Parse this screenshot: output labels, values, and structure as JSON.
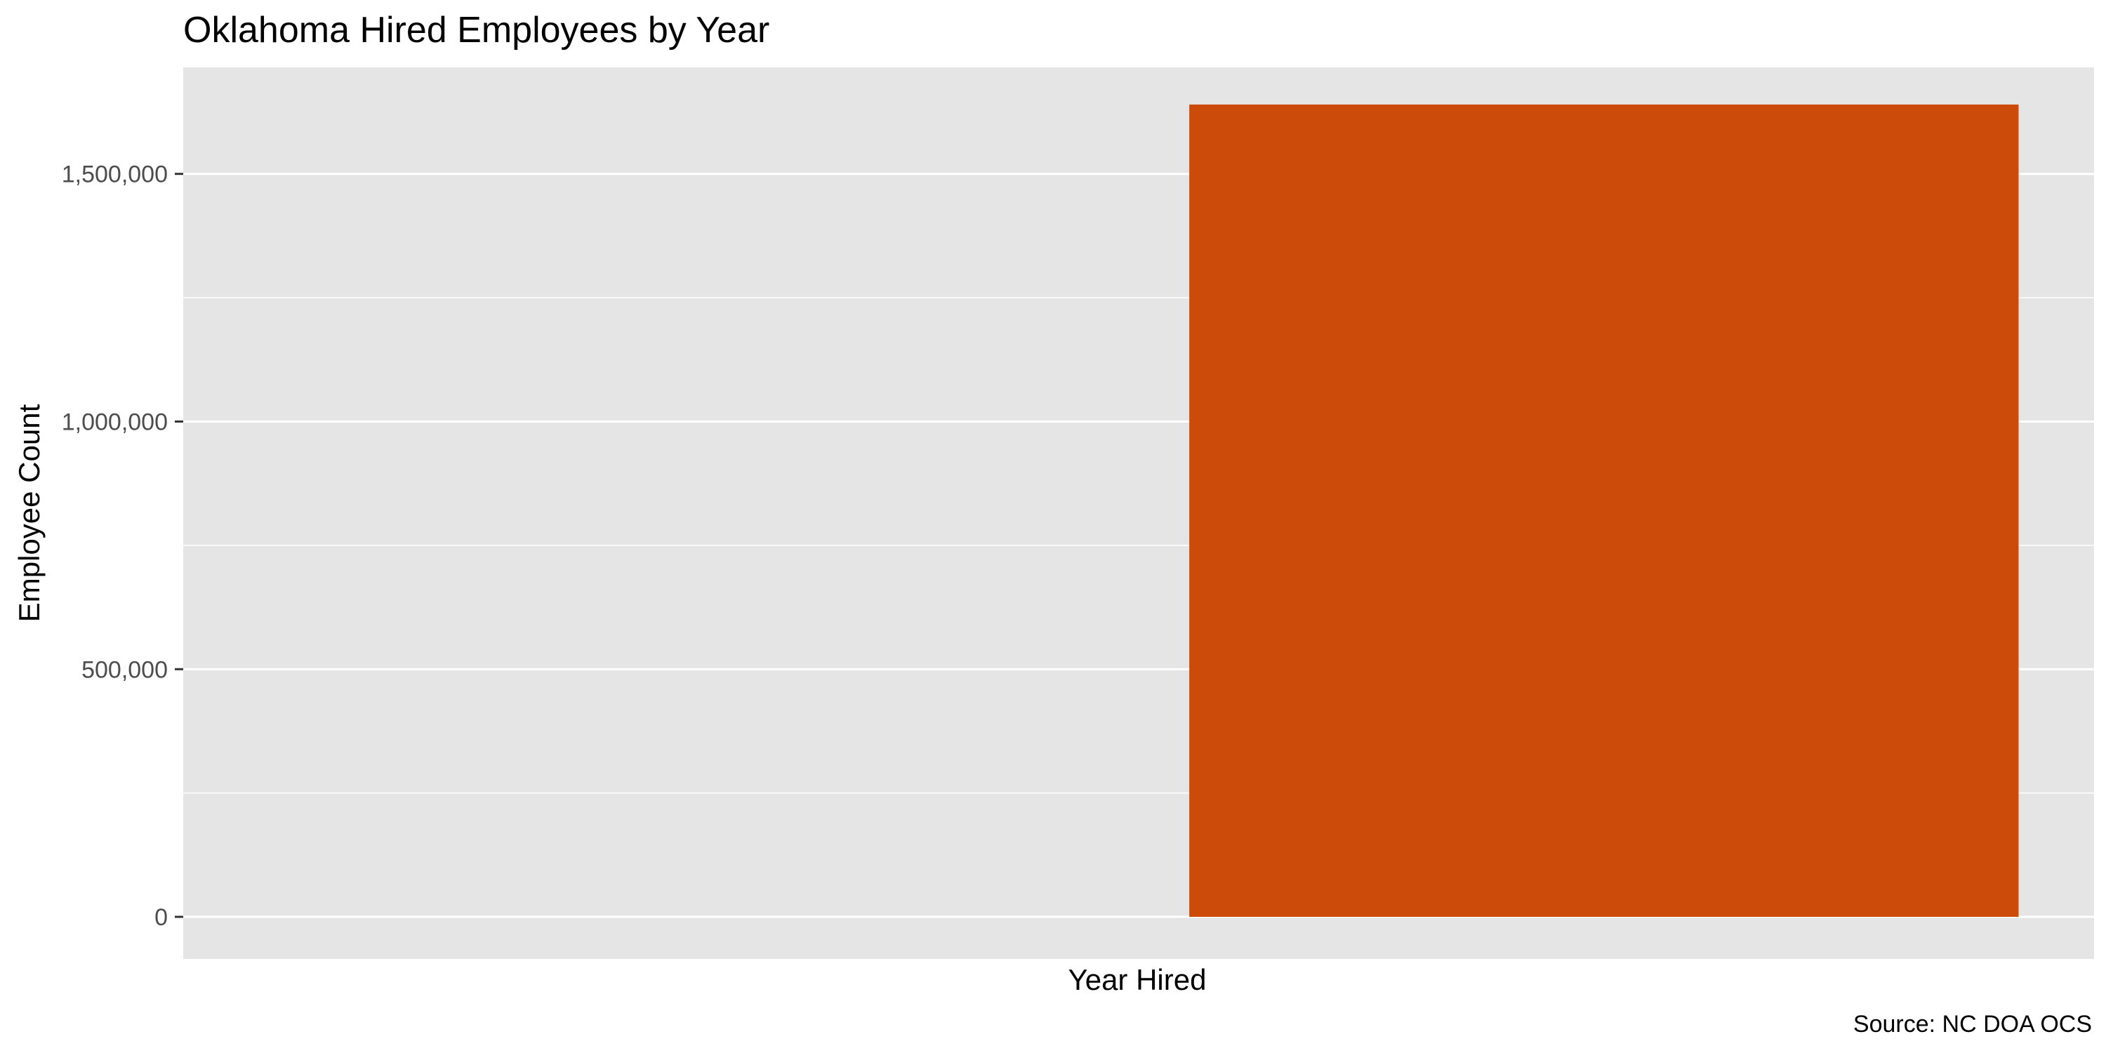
{
  "chart_data": {
    "type": "bar",
    "title": "Oklahoma Hired Employees by Year",
    "xlabel": "Year Hired",
    "ylabel": "Employee Count",
    "caption": "Source: NC DOA OCS",
    "categories": [
      ""
    ],
    "values": [
      1640000
    ],
    "ylim": [
      -85000,
      1715000
    ],
    "y_ticks": [
      0,
      500000,
      1000000,
      1500000
    ],
    "y_tick_labels": [
      "0",
      "500,000",
      "1,000,000",
      "1,500,000"
    ],
    "grid": true,
    "legend": "none",
    "colors": {
      "bar": "#CC4A0A",
      "panel": "#E5E5E5",
      "grid": "#FFFFFF",
      "tick": "#4D4D4D"
    }
  }
}
